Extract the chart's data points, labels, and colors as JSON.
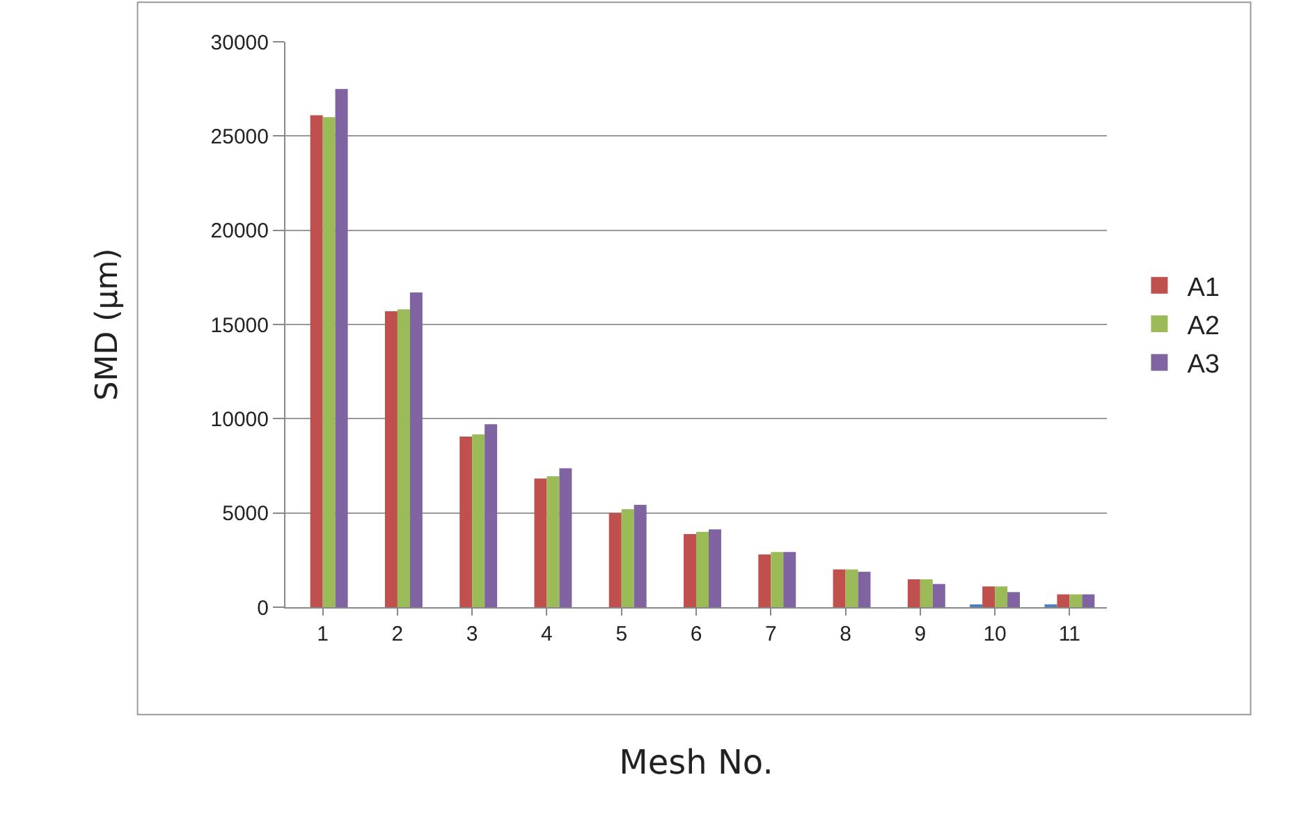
{
  "chart_data": {
    "type": "bar",
    "xlabel": "Mesh No.",
    "ylabel": "SMD (μm)",
    "categories": [
      "1",
      "2",
      "3",
      "4",
      "5",
      "6",
      "7",
      "8",
      "9",
      "10",
      "11"
    ],
    "series": [
      {
        "color": "#4f81bd",
        "values": [
          null,
          null,
          null,
          null,
          null,
          null,
          null,
          null,
          null,
          150,
          150
        ]
      },
      {
        "name": "A1",
        "color": "#c0504d",
        "values": [
          26100,
          15700,
          9050,
          6830,
          5000,
          3880,
          2800,
          2000,
          1480,
          1100,
          680
        ]
      },
      {
        "name": "A2",
        "color": "#9bbb59",
        "values": [
          26000,
          15800,
          9170,
          6950,
          5200,
          4000,
          2930,
          2000,
          1480,
          1100,
          680
        ]
      },
      {
        "name": "A3",
        "color": "#8064a2",
        "values": [
          27500,
          16700,
          9710,
          7370,
          5430,
          4130,
          2930,
          1880,
          1230,
          800,
          680
        ]
      }
    ],
    "ylim": [
      0,
      30000
    ],
    "yticks": [
      0,
      5000,
      10000,
      15000,
      20000,
      25000,
      30000
    ],
    "grid": "y",
    "legend": "right"
  }
}
